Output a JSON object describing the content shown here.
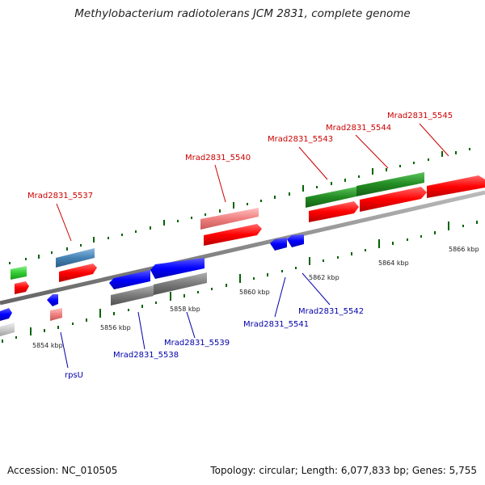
{
  "title": "Methylobacterium radiotolerans JCM 2831, complete genome",
  "footer": {
    "accession": "Accession: NC_010505",
    "summary": "Topology: circular; Length: 6,077,833 bp; Genes: 5,755"
  },
  "scale": {
    "ticks": [
      "5854 kbp",
      "5856 kbp",
      "5858 kbp",
      "5860 kbp",
      "5862 kbp",
      "5864 kbp",
      "5866 kbp"
    ]
  },
  "genes": {
    "top": [
      "Mrad2831_5537",
      "Mrad2831_5540",
      "Mrad2831_5543",
      "Mrad2831_5544",
      "Mrad2831_5545"
    ],
    "bottom": [
      "rpsU",
      "Mrad2831_5538",
      "Mrad2831_5539",
      "Mrad2831_5541",
      "Mrad2831_5542"
    ]
  },
  "colors": {
    "cds_forward": "#ff0000",
    "cds_reverse": "#0000ff",
    "rna_green": "#228b22",
    "light_green": "#33cc33",
    "pink": "#f08080",
    "steel_blue": "#4682b4",
    "grey": "#808080",
    "backbone": "#888888",
    "label_top": "#cc0000",
    "label_bottom": "#0000aa",
    "tick": "#006400"
  }
}
